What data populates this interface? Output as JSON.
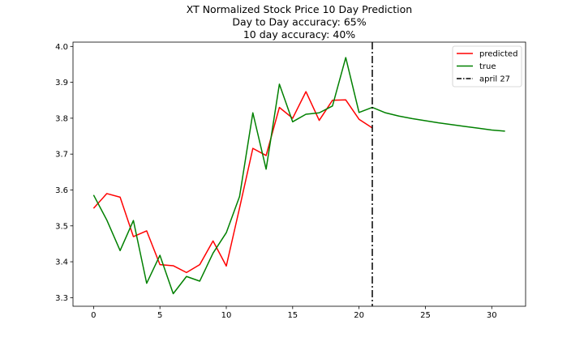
{
  "chart_data": {
    "type": "line",
    "title": [
      "XT Normalized Stock Price 10 Day Prediction",
      "Day to Day accuracy: 65%",
      "10 day accuracy: 40%"
    ],
    "xlabel": "",
    "ylabel": "",
    "xlim": [
      -1.55,
      32.55
    ],
    "ylim": [
      3.276,
      4.012
    ],
    "xticks": [
      0,
      5,
      10,
      15,
      20,
      25,
      30
    ],
    "yticks": [
      3.3,
      3.4,
      3.5,
      3.6,
      3.7,
      3.8,
      3.9,
      4.0
    ],
    "xtick_labels": [
      "0",
      "5",
      "10",
      "15",
      "20",
      "25",
      "30"
    ],
    "ytick_labels": [
      "3.3",
      "3.4",
      "3.5",
      "3.6",
      "3.7",
      "3.8",
      "3.9",
      "4.0"
    ],
    "grid": false,
    "legend_position": "top-right",
    "series": [
      {
        "name": "predicted",
        "color": "#ff0000",
        "style": "solid",
        "x": [
          0,
          1,
          2,
          3,
          4,
          5,
          6,
          7,
          8,
          9,
          10,
          11,
          12,
          13,
          14,
          15,
          16,
          17,
          18,
          19,
          20,
          21
        ],
        "y": [
          3.549,
          3.59,
          3.58,
          3.47,
          3.486,
          3.392,
          3.389,
          3.37,
          3.392,
          3.458,
          3.388,
          3.55,
          3.716,
          3.696,
          3.83,
          3.8,
          3.874,
          3.794,
          3.85,
          3.851,
          3.797,
          3.773
        ]
      },
      {
        "name": "true",
        "color": "#008000",
        "style": "solid",
        "x": [
          0,
          1,
          2,
          3,
          4,
          5,
          6,
          7,
          8,
          9,
          10,
          11,
          12,
          13,
          14,
          15,
          16,
          17,
          18,
          19,
          20,
          21,
          22,
          23,
          24,
          25,
          26,
          27,
          28,
          29,
          30,
          31
        ],
        "y": [
          3.586,
          3.516,
          3.431,
          3.515,
          3.34,
          3.418,
          3.311,
          3.359,
          3.346,
          3.424,
          3.481,
          3.582,
          3.815,
          3.658,
          3.895,
          3.79,
          3.811,
          3.815,
          3.834,
          3.969,
          3.816,
          3.83,
          3.815,
          3.806,
          3.799,
          3.793,
          3.787,
          3.782,
          3.777,
          3.772,
          3.767,
          3.764
        ]
      }
    ],
    "vline": {
      "name": "april 27",
      "x": 21,
      "color": "#000000",
      "style": "dashdot"
    }
  }
}
